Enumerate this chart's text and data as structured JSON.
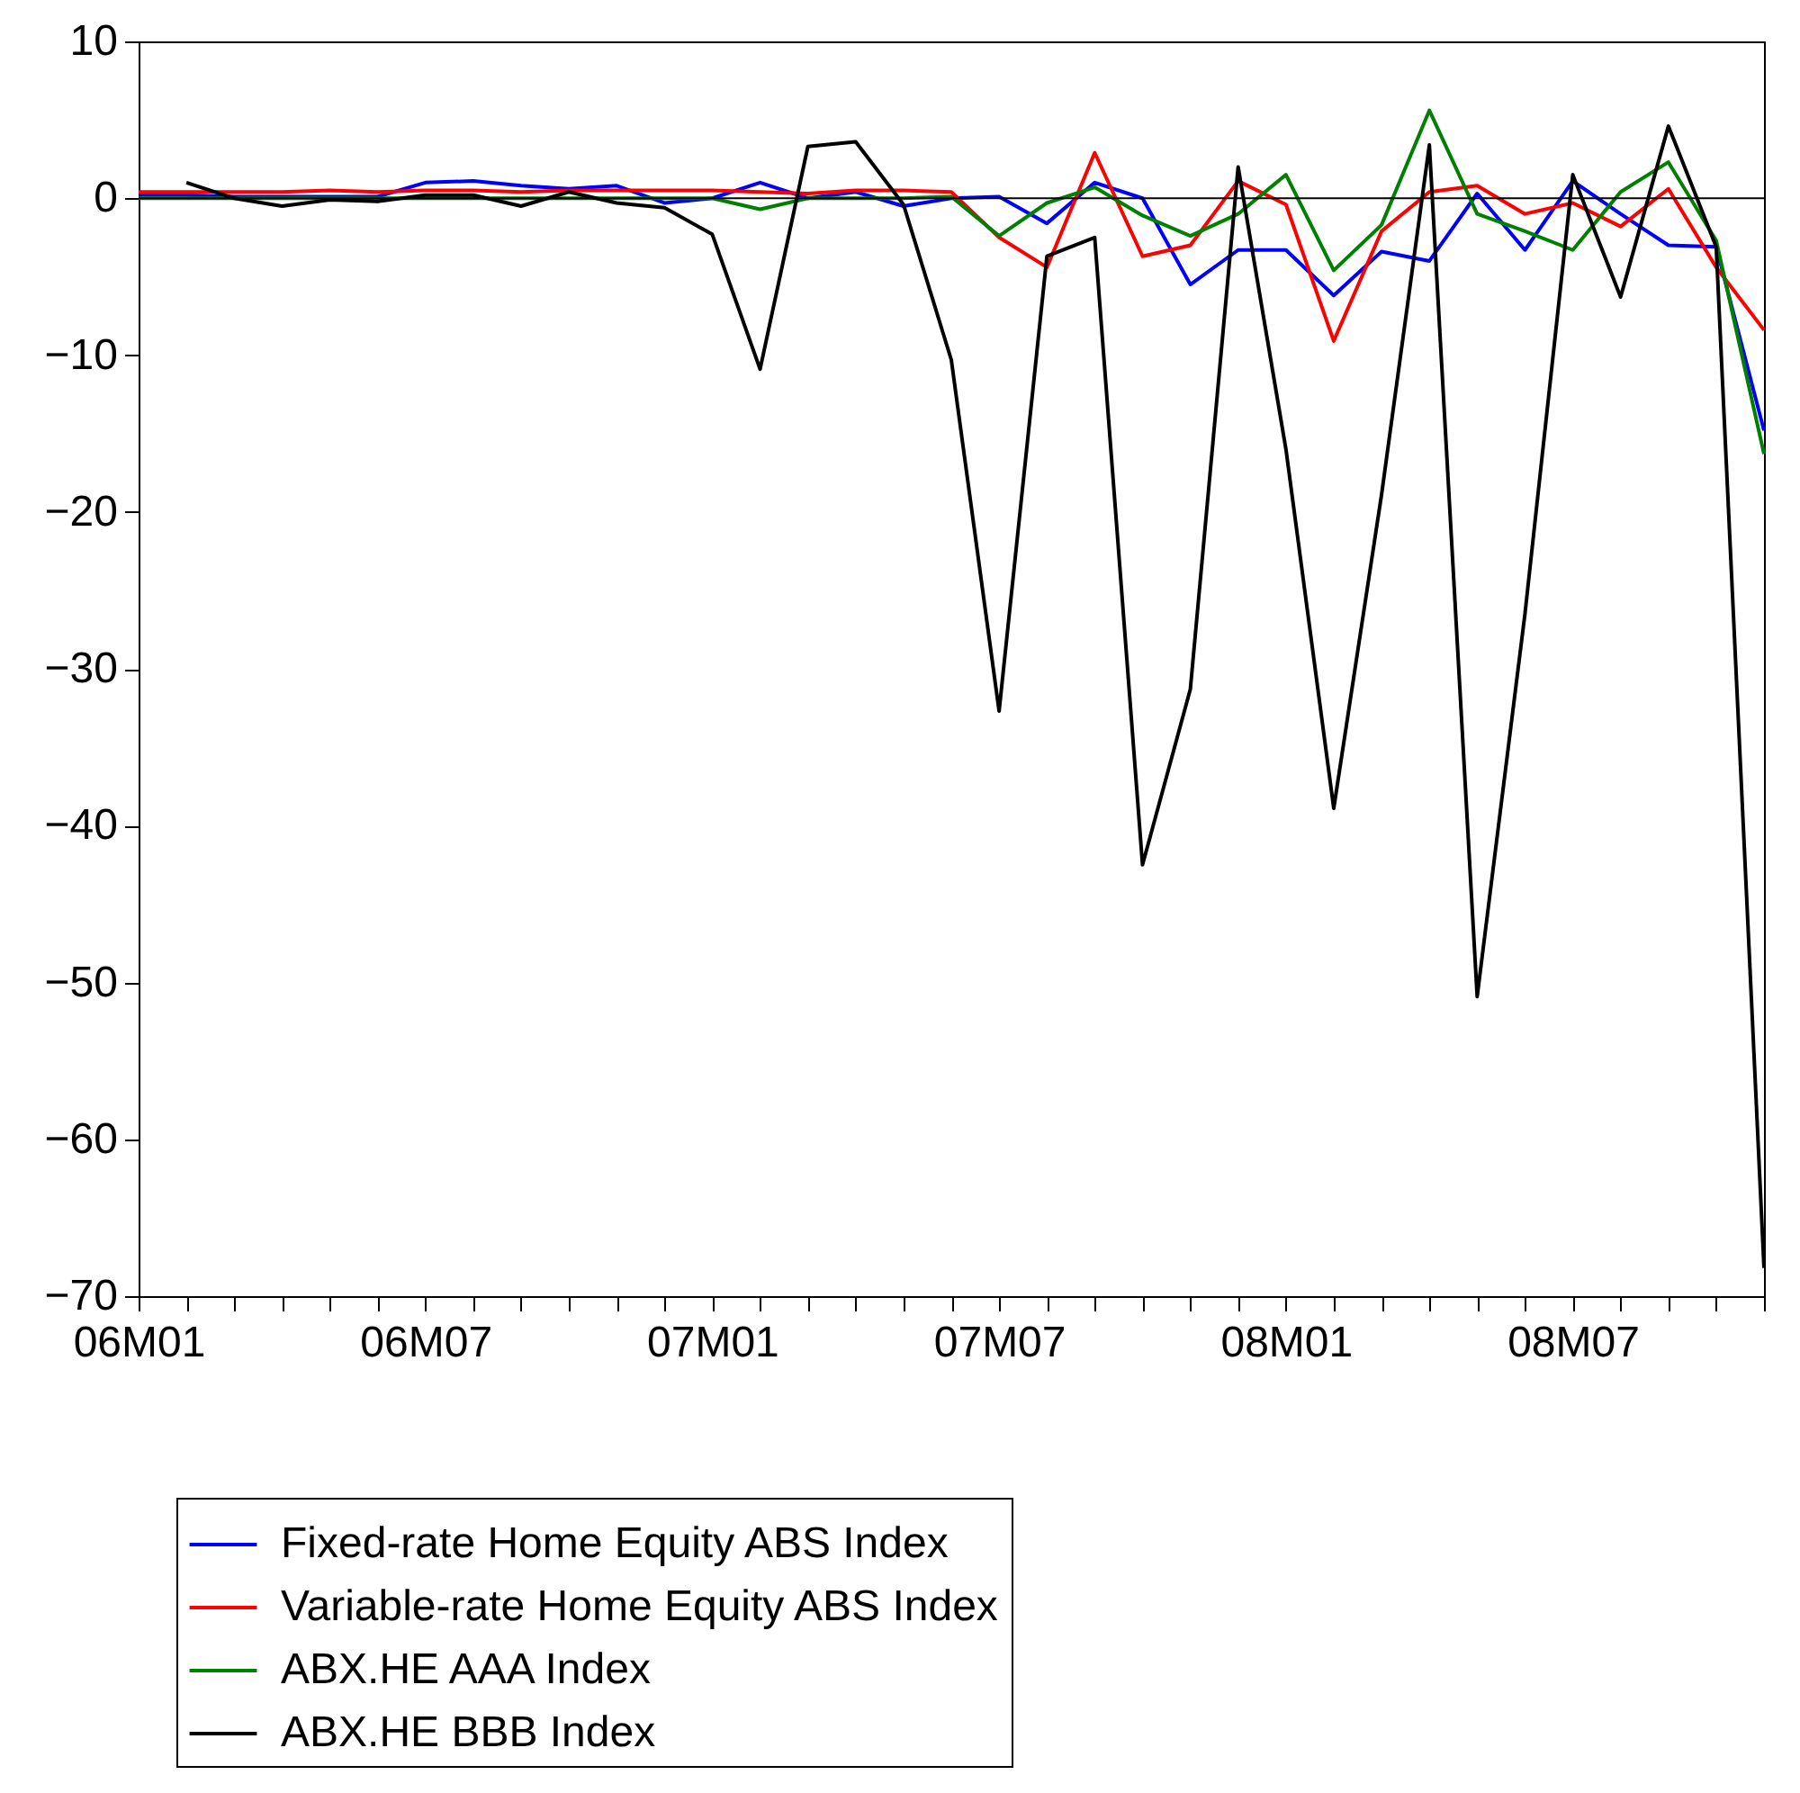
{
  "chart_data": {
    "type": "line",
    "categories": [
      "06M01",
      null,
      null,
      null,
      null,
      null,
      "06M07",
      null,
      null,
      null,
      null,
      null,
      "07M01",
      null,
      null,
      null,
      null,
      null,
      "07M07",
      null,
      null,
      null,
      null,
      null,
      "08M01",
      null,
      null,
      null,
      null,
      null,
      "08M07",
      null,
      null,
      null,
      null
    ],
    "series": [
      {
        "name": "Fixed-rate Home Equity ABS Index",
        "color": "#0000ff",
        "values": [
          0.2,
          0.2,
          0.1,
          0.1,
          0.1,
          0.1,
          1.0,
          1.1,
          0.8,
          0.6,
          0.8,
          -0.3,
          0,
          1.0,
          0,
          0.4,
          -0.5,
          0,
          0.1,
          -1.6,
          1.0,
          0,
          -5.5,
          -3.3,
          -3.3,
          -6.2,
          -3.4,
          -4.0,
          0.3,
          -3.3,
          1.1,
          -1.0,
          -3.0,
          -3.1,
          -14.8
        ]
      },
      {
        "name": "Variable-rate Home Equity ABS Index",
        "color": "#ff0000",
        "values": [
          0.4,
          0.4,
          0.4,
          0.4,
          0.5,
          0.4,
          0.5,
          0.5,
          0.4,
          0.5,
          0.5,
          0.5,
          0.5,
          0.4,
          0.3,
          0.5,
          0.5,
          0.4,
          -2.5,
          -4.4,
          2.9,
          -3.7,
          -3.0,
          1.1,
          -0.4,
          -9.1,
          -2.1,
          0.4,
          0.8,
          -1.0,
          -0.3,
          -1.8,
          0.6,
          -4.4,
          -8.4
        ]
      },
      {
        "name": "ABX.HE AAA Index",
        "color": "#008000",
        "values": [
          0,
          0,
          0,
          0,
          0,
          0,
          0,
          0,
          0,
          0,
          0,
          0,
          0,
          -0.7,
          0,
          0,
          0,
          0.1,
          -2.4,
          -0.3,
          0.7,
          -1.1,
          -2.4,
          -1.0,
          1.5,
          -4.6,
          -1.7,
          5.6,
          -1.0,
          -2.1,
          -3.3,
          0.4,
          2.3,
          -2.7,
          -16.3
        ]
      },
      {
        "name": "ABX.HE BBB Index",
        "color": "#000000",
        "values": [
          null,
          1.0,
          0,
          -0.5,
          -0.1,
          -0.2,
          0.2,
          0.2,
          -0.5,
          0.4,
          -0.3,
          -0.6,
          -2.3,
          -10.9,
          3.3,
          3.6,
          -0.4,
          -10.3,
          -32.7,
          -3.7,
          -2.5,
          -42.5,
          -31.3,
          2.0,
          -16.0,
          -38.9,
          -18.9,
          3.4,
          -50.9,
          -26.5,
          1.5,
          -6.3,
          4.6,
          -3.1,
          -68.2
        ]
      }
    ],
    "ylim": [
      -70,
      10
    ],
    "yticks": [
      -70,
      -60,
      -50,
      -40,
      -30,
      -20,
      -10,
      0,
      10
    ],
    "ref_lines": [
      {
        "axis": "y",
        "value": 0
      }
    ],
    "grid": false,
    "legend": "bottom",
    "line_style": "solid"
  }
}
